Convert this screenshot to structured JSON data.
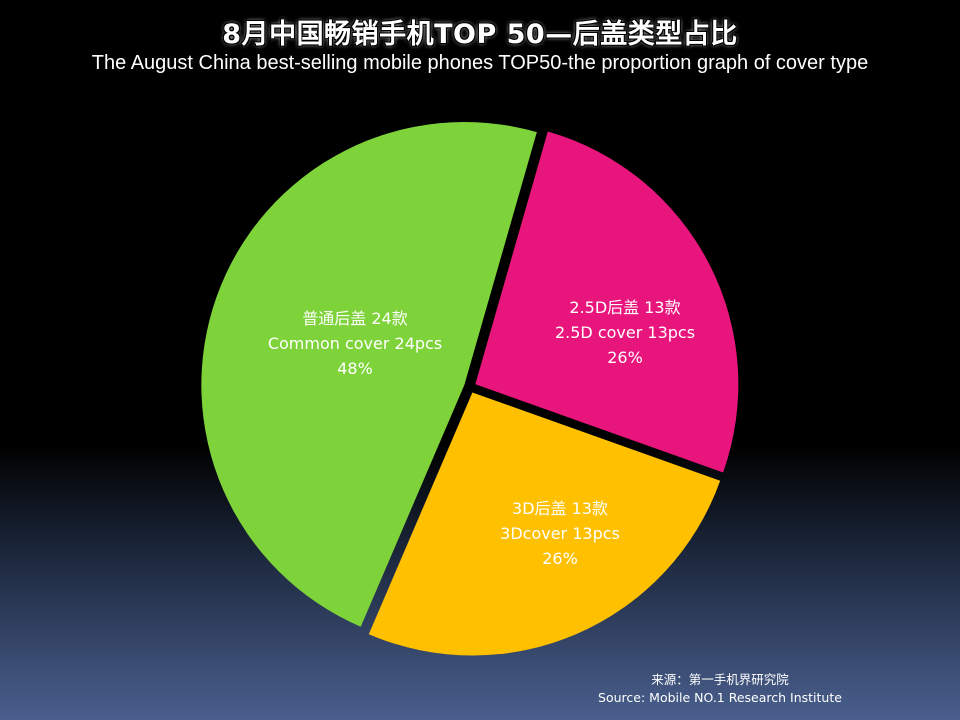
{
  "chart_data": {
    "type": "pie",
    "title": "8月中国畅销手机TOP 50—后盖类型占比",
    "subtitle": "The August China best-selling mobile phones TOP50-the proportion graph of  cover type",
    "slices": [
      {
        "label_cn": "2.5D后盖 13款",
        "label_en": "2.5D cover 13pcs",
        "count": 13,
        "percent_label": "26%",
        "color": "#e8157d"
      },
      {
        "label_cn": "3D后盖 13款",
        "label_en": "3Dcover 13pcs",
        "count": 13,
        "percent_label": "26%",
        "color": "#ffc000"
      },
      {
        "label_cn": "普通后盖 24款",
        "label_en": "Common  cover 24pcs",
        "count": 24,
        "percent_label": "48%",
        "color": "#7ed33b"
      }
    ]
  },
  "source": {
    "line1": "来源：第一手机界研究院",
    "line2": "Source: Mobile NO.1 Research Institute"
  }
}
